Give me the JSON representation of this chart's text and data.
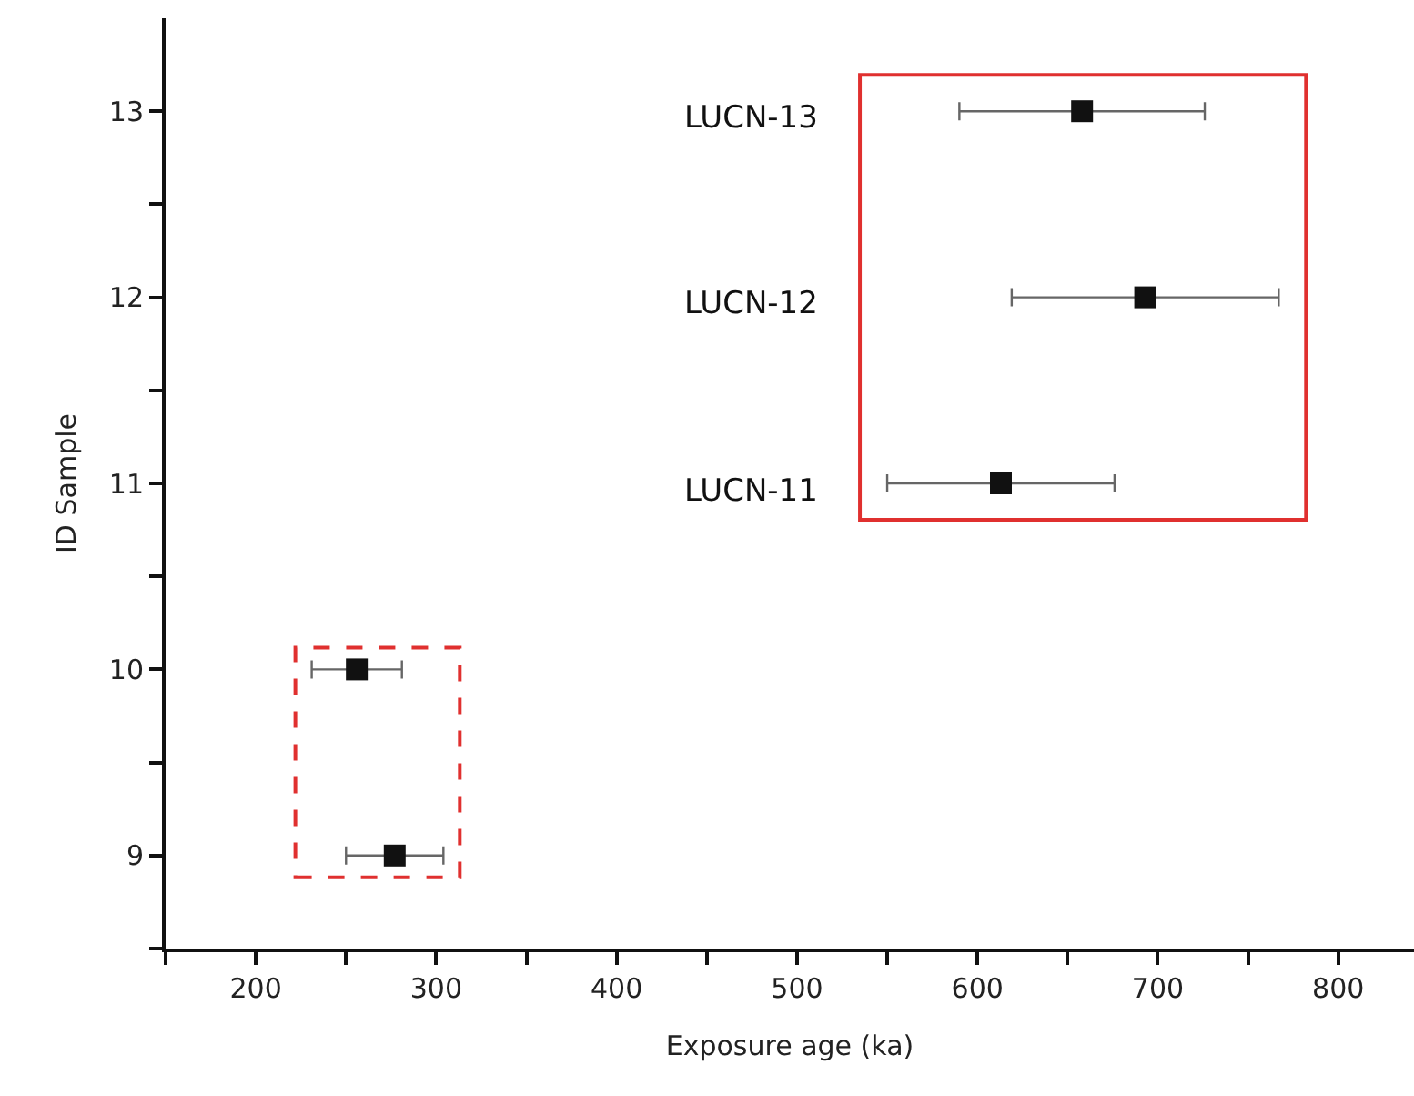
{
  "chart_data": {
    "type": "scatter",
    "xlabel": "Exposure age (ka)",
    "ylabel": "ID Sample",
    "series": [
      {
        "color": "#111111",
        "x": [
          277,
          256
        ],
        "values": [
          9,
          10
        ],
        "xerrors": [
          27,
          25
        ]
      },
      {
        "color": "#111111",
        "x": [
          613,
          693,
          658
        ],
        "values": [
          11,
          12,
          13
        ],
        "xerrors": [
          63,
          74,
          68
        ]
      }
    ],
    "xlim": [
      150,
      842
    ],
    "xticks": [
      {
        "value": 150,
        "label": null
      },
      200,
      {
        "value": 250,
        "label": null
      },
      300,
      {
        "value": 350,
        "label": null
      },
      400,
      {
        "value": 450,
        "label": null
      },
      500,
      {
        "value": 550,
        "label": null
      },
      600,
      {
        "value": 650,
        "label": null
      },
      700,
      {
        "value": 750,
        "label": null
      },
      800
    ],
    "ylim": [
      8.5,
      13.5
    ],
    "yticks": [
      {
        "value": 8.5,
        "label": null
      },
      9,
      {
        "value": 9.5,
        "label": null
      },
      10,
      {
        "value": 10.5,
        "label": null
      },
      11,
      {
        "value": 11.5,
        "label": null
      },
      12,
      {
        "value": 12.5,
        "label": null
      },
      13
    ],
    "annotations": [
      "LUCN-13",
      "LUCN-12",
      "LUCN-11"
    ],
    "marker": "square",
    "grid": false
  }
}
